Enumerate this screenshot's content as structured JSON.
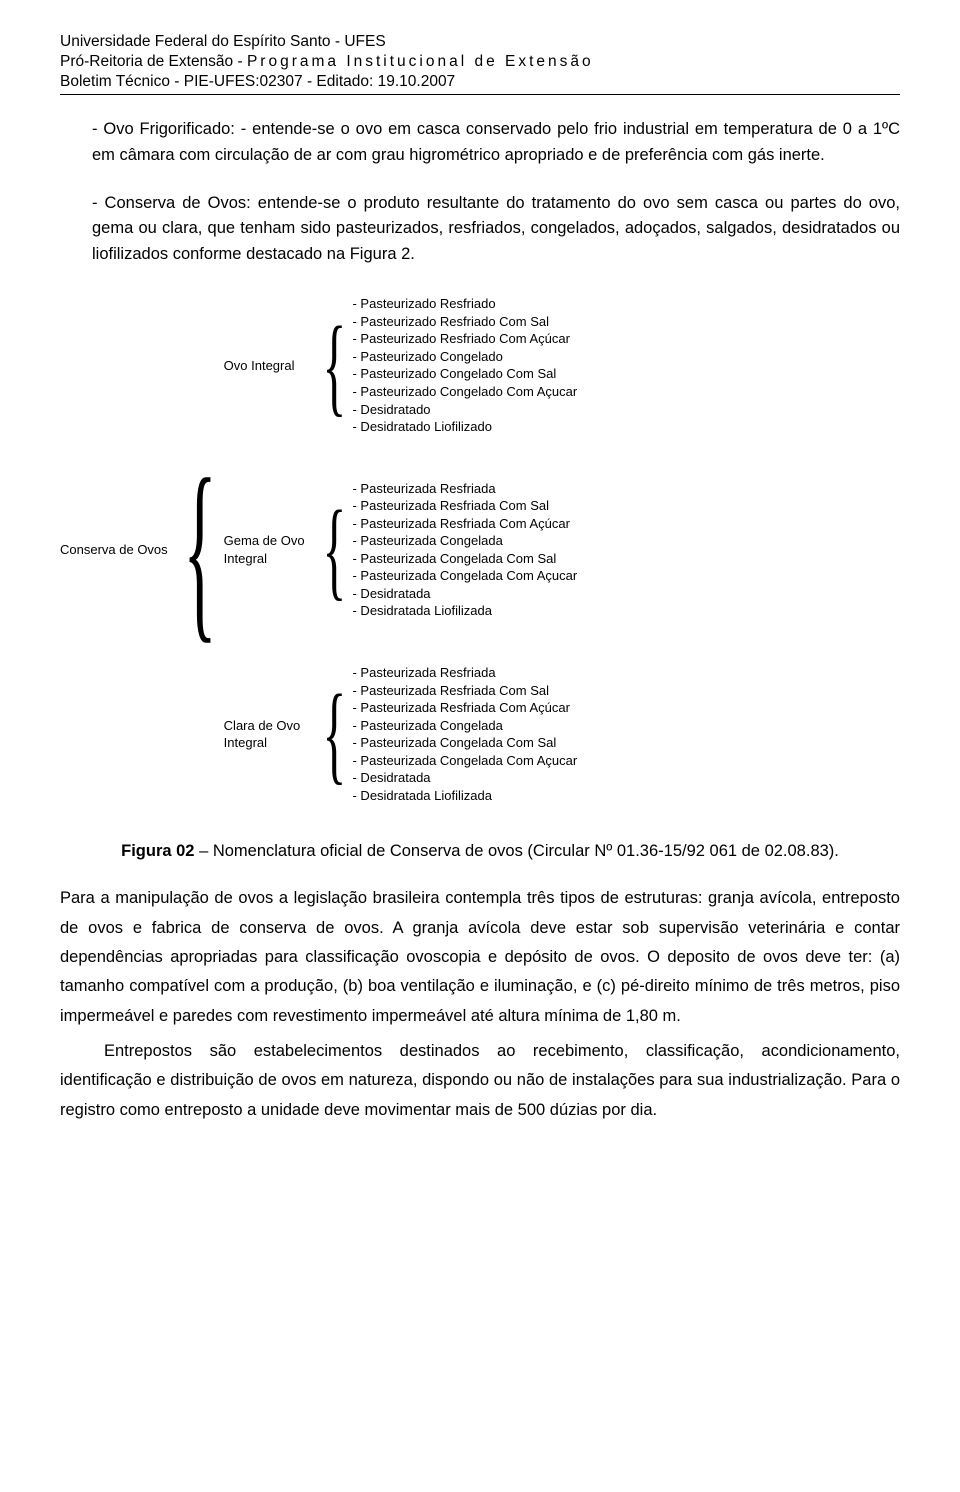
{
  "header": {
    "line1": "Universidade Federal do Espírito Santo - UFES",
    "line2_a": "Pró-Reitoria de Extensão - ",
    "line2_b": "Programa Institucional de Extensão",
    "line3": "Boletim Técnico - PIE-UFES:02307 - Editado: 19.10.2007"
  },
  "para1": "- Ovo Frigorificado: - entende-se o ovo em casca conservado pelo frio industrial em temperatura de 0 a 1ºC em câmara com circulação de ar com grau higrométrico apropriado e de preferência com gás inerte.",
  "para2": "- Conserva de Ovos: entende-se o produto resultante do tratamento do ovo sem casca ou partes do ovo, gema ou clara, que tenham sido pasteurizados, resfriados, congelados, adoçados, salgados, desidratados ou liofilizados conforme destacado na Figura 2.",
  "diagram": {
    "root": "Conserva de Ovos",
    "branches": [
      {
        "label": "Ovo Integral",
        "items": [
          "- Pasteurizado Resfriado",
          "- Pasteurizado Resfriado Com Sal",
          "- Pasteurizado Resfriado Com Açúcar",
          "- Pasteurizado Congelado",
          "- Pasteurizado Congelado Com Sal",
          "- Pasteurizado Congelado Com Açucar",
          "- Desidratado",
          "- Desidratado Liofilizado"
        ]
      },
      {
        "label": "Gema de Ovo Integral",
        "items": [
          "- Pasteurizada Resfriada",
          "- Pasteurizada Resfriada Com Sal",
          "- Pasteurizada Resfriada Com Açúcar",
          "- Pasteurizada Congelada",
          "- Pasteurizada Congelada Com Sal",
          "- Pasteurizada Congelada Com Açucar",
          "- Desidratada",
          "- Desidratada Liofilizada"
        ]
      },
      {
        "label": "Clara de Ovo Integral",
        "items": [
          "- Pasteurizada Resfriada",
          "- Pasteurizada Resfriada Com Sal",
          "- Pasteurizada Resfriada Com Açúcar",
          "- Pasteurizada Congelada",
          "- Pasteurizada Congelada Com Sal",
          "- Pasteurizada Congelada Com Açucar",
          "- Desidratada",
          "- Desidratada Liofilizada"
        ]
      }
    ]
  },
  "caption_bold": "Figura 02",
  "caption_rest": " – Nomenclatura oficial de Conserva de ovos (Circular Nº 01.36-15/92 061 de 02.08.83).",
  "para3": "Para a manipulação de ovos a legislação brasileira contempla três tipos de estruturas: granja avícola, entreposto de ovos e fabrica de conserva de ovos. A granja avícola deve estar sob supervisão veterinária e contar dependências apropriadas para classificação ovoscopia e depósito de ovos. O deposito de ovos deve ter: (a) tamanho compatível com a produção, (b) boa ventilação e iluminação, e (c) pé-direito mínimo de três metros, piso impermeável e paredes com revestimento impermeável até altura mínima de 1,80 m.",
  "para4": "Entrepostos são estabelecimentos destinados ao recebimento, classificação, acondicionamento, identificação e distribuição de ovos em natureza, dispondo ou não de instalações para sua industrialização. Para o registro como entreposto a unidade deve movimentar mais de 500 dúzias por dia."
}
